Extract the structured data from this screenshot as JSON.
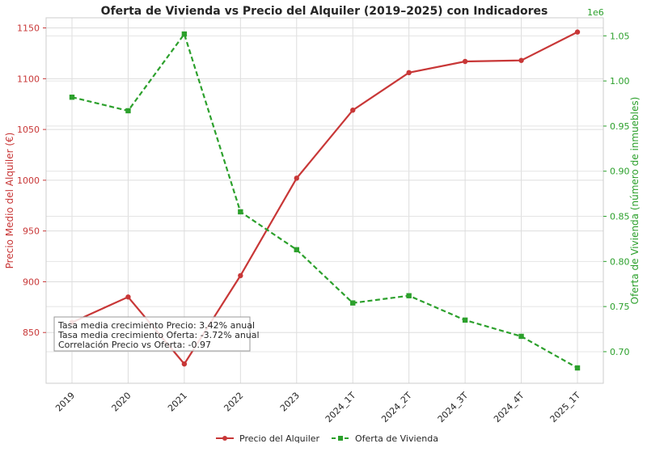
{
  "chart_data": {
    "type": "line",
    "title": "Oferta de Vivienda vs Precio del Alquiler (2019–2025) con Indicadores",
    "categories": [
      "2019",
      "2020",
      "2021",
      "2022",
      "2023",
      "2024_1T",
      "2024_2T",
      "2024_3T",
      "2024_4T",
      "2025_1T"
    ],
    "y_left": {
      "label": "Precio Medio del Alquiler (€)",
      "range": [
        800,
        1160
      ],
      "ticks": [
        "850",
        "900",
        "950",
        "1000",
        "1050",
        "1100",
        "1150"
      ],
      "tick_values": [
        850,
        900,
        950,
        1000,
        1050,
        1100,
        1150
      ],
      "color": "#c83737"
    },
    "y_right": {
      "label": "Oferta de Vivienda (número de inmuebles)",
      "multiplier": "1e6",
      "range": [
        0.665,
        1.07
      ],
      "ticks": [
        "0.70",
        "0.75",
        "0.80",
        "0.85",
        "0.90",
        "0.95",
        "1.00",
        "1.05"
      ],
      "tick_values": [
        0.7,
        0.75,
        0.8,
        0.85,
        0.9,
        0.95,
        1.0,
        1.05
      ],
      "color": "#2ca02c"
    },
    "series": [
      {
        "name": "Precio del Alquiler",
        "axis": "left",
        "color": "#c83737",
        "style": "solid",
        "marker": "circle",
        "values": [
          860,
          885,
          819,
          906,
          1002,
          1069,
          1106,
          1117,
          1118,
          1146
        ]
      },
      {
        "name": "Oferta de Vivienda",
        "axis": "right",
        "color": "#2ca02c",
        "style": "dashed",
        "marker": "square",
        "values": [
          0.982,
          0.967,
          1.052,
          0.855,
          0.813,
          0.754,
          0.762,
          0.735,
          0.717,
          0.682
        ]
      }
    ],
    "annotation": [
      "Tasa media crecimiento Precio: 3.42% anual",
      "Tasa media crecimiento Oferta: -3.72% anual",
      "Correlación Precio vs Oferta: -0.97"
    ],
    "grid": true,
    "legend_position": "bottom-center"
  }
}
